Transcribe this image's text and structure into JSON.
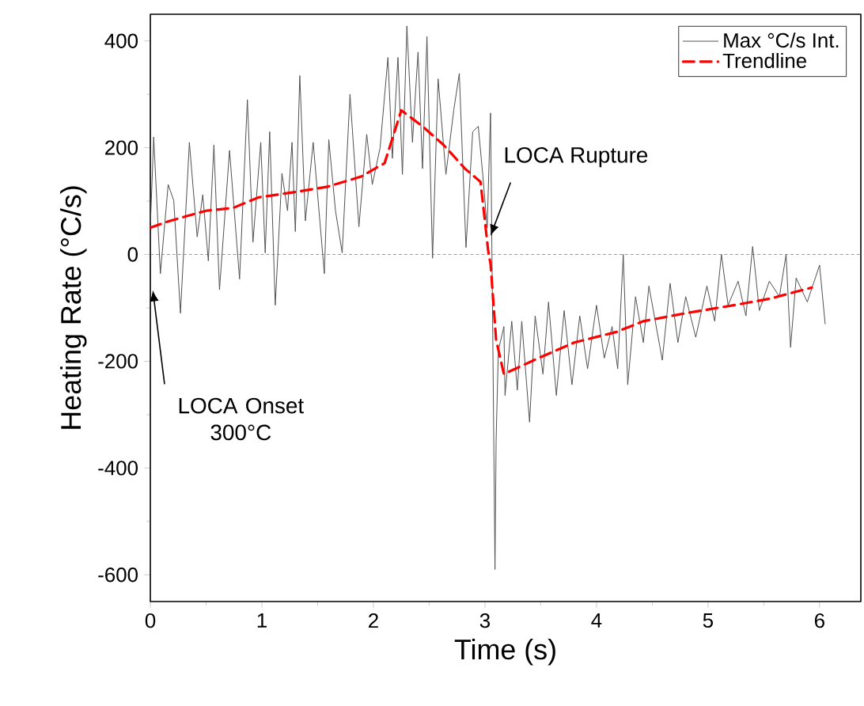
{
  "chart_data": {
    "type": "line",
    "xlabel": "Time (s)",
    "ylabel": "Heating Rate (°C/s)",
    "xlim": [
      0,
      6.37
    ],
    "ylim": [
      -650,
      450
    ],
    "xticks": [
      0,
      1,
      2,
      3,
      4,
      5,
      6
    ],
    "yticks": [
      -600,
      -400,
      -200,
      0,
      200,
      400
    ],
    "legend": "top right",
    "series": [
      {
        "name": "Max °C/s Int.",
        "color": "#505050",
        "line_style": "solid",
        "x": [
          0,
          0.03,
          0.09,
          0.16,
          0.21,
          0.27,
          0.35,
          0.42,
          0.47,
          0.52,
          0.57,
          0.62,
          0.71,
          0.8,
          0.87,
          0.92,
          0.99,
          1.03,
          1.07,
          1.12,
          1.18,
          1.23,
          1.27,
          1.3,
          1.34,
          1.39,
          1.46,
          1.56,
          1.6,
          1.66,
          1.72,
          1.79,
          1.87,
          1.94,
          1.99,
          2.06,
          2.13,
          2.17,
          2.22,
          2.26,
          2.3,
          2.35,
          2.4,
          2.44,
          2.48,
          2.53,
          2.58,
          2.65,
          2.72,
          2.77,
          2.83,
          2.89,
          2.94,
          2.98,
          3.02,
          3.05,
          3.07,
          3.09,
          3.1,
          3.12,
          3.17,
          3.18,
          3.24,
          3.29,
          3.33,
          3.4,
          3.45,
          3.52,
          3.57,
          3.64,
          3.71,
          3.78,
          3.85,
          3.92,
          4.0,
          4.07,
          4.14,
          4.19,
          4.24,
          4.28,
          4.35,
          4.42,
          4.47,
          4.59,
          4.66,
          4.73,
          4.8,
          4.89,
          4.99,
          5.06,
          5.12,
          5.18,
          5.27,
          5.34,
          5.4,
          5.46,
          5.55,
          5.64,
          5.7,
          5.74,
          5.79,
          5.89,
          6.0,
          6.05
        ],
        "values": [
          52,
          220,
          -36,
          131,
          101,
          -110,
          210,
          33,
          112,
          -12,
          205,
          -66,
          195,
          -46,
          290,
          23,
          210,
          3,
          230,
          -95,
          152,
          82,
          210,
          43,
          335,
          63,
          210,
          -36,
          215,
          82,
          3,
          300,
          52,
          225,
          131,
          200,
          369,
          180,
          369,
          150,
          428,
          210,
          379,
          161,
          408,
          -7,
          329,
          150,
          270,
          339,
          13,
          230,
          240,
          150,
          50,
          265,
          -150,
          -590,
          -350,
          -180,
          -135,
          -264,
          -125,
          -254,
          -125,
          -314,
          -115,
          -224,
          -89,
          -264,
          -105,
          -244,
          -115,
          -214,
          -95,
          -194,
          -135,
          -214,
          0,
          -244,
          -79,
          -165,
          -59,
          -198,
          -54,
          -165,
          -79,
          -155,
          -59,
          -125,
          0,
          -95,
          -50,
          -115,
          15,
          -105,
          -50,
          -79,
          0,
          -174,
          -44,
          -89,
          -20,
          -130
        ]
      },
      {
        "name": "Trendline",
        "color": "#ff0000",
        "line_style": "dashed",
        "x": [
          0,
          0.16,
          0.5,
          0.74,
          0.97,
          1.3,
          1.59,
          1.89,
          2.1,
          2.25,
          2.44,
          2.63,
          2.82,
          2.96,
          3.0,
          3.03,
          3.05,
          3.1,
          3.17,
          3.48,
          3.8,
          4.18,
          4.42,
          4.8,
          5.23,
          5.55,
          5.93
        ],
        "values": [
          50,
          62,
          82,
          87,
          107,
          117,
          127,
          146,
          171,
          270,
          240,
          205,
          161,
          136,
          62,
          5,
          -17,
          -160,
          -224,
          -194,
          -165,
          -145,
          -125,
          -110,
          -95,
          -83,
          -62
        ]
      }
    ],
    "ref_lines": [
      {
        "axis": "y",
        "value": 0,
        "color": "#808080",
        "line_style": "dashed"
      }
    ],
    "annotations": [
      "LOCA Onset 300°C",
      {
        "text": "LOCA Rupture",
        "x": 3.05,
        "y": 35
      }
    ]
  }
}
